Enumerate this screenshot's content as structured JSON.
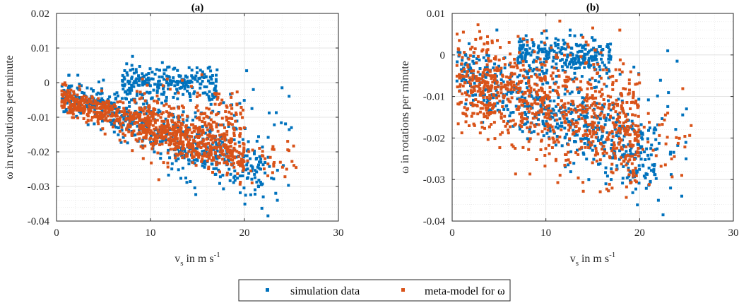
{
  "chart_data": [
    {
      "type": "scatter",
      "title": "(a)",
      "xlabel": "v_s in m s^-1",
      "xlabel_parts": {
        "main": "v",
        "sub": "s",
        "rest": " in m s",
        "sup": "-1"
      },
      "ylabel": "ω in revolutions per minute",
      "xlim": [
        0,
        30
      ],
      "ylim": [
        -0.04,
        0.02
      ],
      "xticks": [
        0,
        10,
        20,
        30
      ],
      "xtick_labels": [
        "0",
        "10",
        "20",
        "30"
      ],
      "yticks": [
        0.02,
        0.01,
        0,
        -0.01,
        -0.02,
        -0.03,
        -0.04
      ],
      "ytick_labels": [
        "0.02",
        "0.01",
        "0",
        "-0.01",
        "-0.02",
        "-0.03",
        "-0.04"
      ],
      "grid": true,
      "minor_grid": true,
      "series": [
        {
          "name": "simulation data",
          "color": "#0072BD",
          "clusters": [
            {
              "n": 260,
              "x": [
                7,
                17
              ],
              "y_center": 0.0,
              "y_spread": 0.0025,
              "slope": 0
            },
            {
              "n": 520,
              "x": [
                0.5,
                22
              ],
              "y_center_at_x0": -0.002,
              "slope": -0.0011,
              "y_spread": 0.004
            },
            {
              "n": 80,
              "x": [
                12,
                25
              ],
              "y_center": -0.018,
              "y_spread": 0.008,
              "slope": -0.0004
            }
          ],
          "notable_points": [
            [
              22.5,
              -0.0385
            ],
            [
              25,
              -0.013
            ],
            [
              24,
              -0.0015
            ],
            [
              22,
              -0.033
            ],
            [
              23.5,
              -0.034
            ],
            [
              19.5,
              -0.006
            ],
            [
              20.8,
              -0.0075
            ]
          ]
        },
        {
          "name": "meta-model for ω",
          "color": "#D95319",
          "clusters": [
            {
              "n": 700,
              "x": [
                0.5,
                20
              ],
              "y_center_at_x0": -0.004,
              "slope": -0.0009,
              "y_spread": 0.003
            },
            {
              "n": 260,
              "x": [
                8,
                20
              ],
              "y_center": -0.012,
              "y_spread": 0.005,
              "slope": 0
            },
            {
              "n": 40,
              "x": [
                18,
                25.5
              ],
              "y_center": -0.022,
              "y_spread": 0.003,
              "slope": -0.0002
            }
          ],
          "notable_points": [
            [
              25.5,
              -0.0245
            ],
            [
              24.5,
              -0.025
            ],
            [
              22.5,
              -0.0235
            ],
            [
              23,
              -0.026
            ]
          ]
        }
      ]
    },
    {
      "type": "scatter",
      "title": "(b)",
      "xlabel": "v_s in m s^-1",
      "xlabel_parts": {
        "main": "v",
        "sub": "s",
        "rest": " in m s",
        "sup": "-1"
      },
      "ylabel": "ω in rotations per minute",
      "xlim": [
        0,
        30
      ],
      "ylim": [
        -0.04,
        0.01
      ],
      "xticks": [
        0,
        10,
        20,
        30
      ],
      "xtick_labels": [
        "0",
        "10",
        "20",
        "30"
      ],
      "yticks": [
        0.01,
        0,
        -0.01,
        -0.02,
        -0.03,
        -0.04
      ],
      "ytick_labels": [
        "0.01",
        "0",
        "-0.01",
        "-0.02",
        "-0.03",
        "-0.04"
      ],
      "grid": true,
      "minor_grid": true,
      "series": [
        {
          "name": "simulation data",
          "color": "#0072BD",
          "clusters": [
            {
              "n": 260,
              "x": [
                7,
                17
              ],
              "y_center": 0.0,
              "y_spread": 0.0022,
              "slope": 0
            },
            {
              "n": 520,
              "x": [
                0.5,
                22
              ],
              "y_center_at_x0": -0.002,
              "slope": -0.0011,
              "y_spread": 0.005
            },
            {
              "n": 80,
              "x": [
                12,
                25
              ],
              "y_center": -0.018,
              "y_spread": 0.008,
              "slope": -0.0004
            }
          ],
          "notable_points": [
            [
              22.5,
              -0.0385
            ],
            [
              25,
              -0.013
            ],
            [
              24,
              -0.0015
            ],
            [
              22,
              -0.035
            ],
            [
              24.5,
              -0.034
            ],
            [
              23,
              0.001
            ]
          ]
        },
        {
          "name": "meta-model for ω",
          "color": "#D95319",
          "clusters": [
            {
              "n": 900,
              "x": [
                0.5,
                20
              ],
              "y_center_at_x0": -0.006,
              "slope": -0.0006,
              "y_spread": 0.0075
            },
            {
              "n": 60,
              "x": [
                17,
                25.5
              ],
              "y_center": -0.02,
              "y_spread": 0.006,
              "slope": 0
            }
          ],
          "notable_points": [
            [
              25.5,
              -0.017
            ],
            [
              24.5,
              -0.029
            ],
            [
              15,
              0.0065
            ],
            [
              1.2,
              0.0055
            ],
            [
              23,
              -0.014
            ]
          ]
        }
      ]
    }
  ],
  "legend": {
    "placement": "bottom-center",
    "entries": [
      {
        "label": "simulation data",
        "color": "#0072BD"
      },
      {
        "label": "meta-model for ω",
        "color": "#D95319"
      }
    ]
  }
}
